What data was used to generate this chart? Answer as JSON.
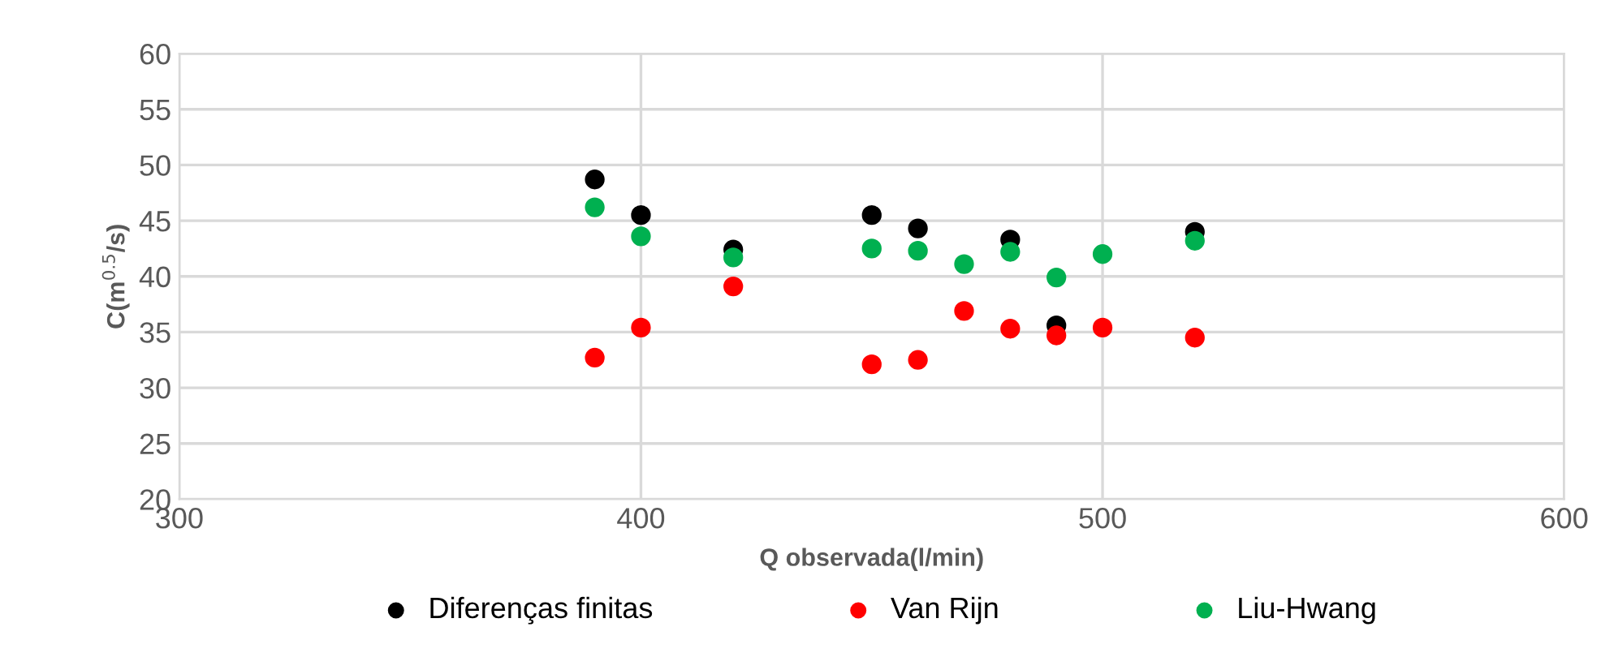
{
  "chart_data": {
    "type": "scatter",
    "xlabel": "Q observada(l/min)",
    "ylabel": "C(m$^{0.5}$/s)",
    "xlim": [
      300,
      600
    ],
    "xticks": [
      300,
      400,
      500,
      600
    ],
    "ylim": [
      20,
      60
    ],
    "yticks": [
      20,
      25,
      30,
      35,
      40,
      45,
      50,
      55,
      60
    ],
    "grid": true,
    "legend": "bottom",
    "marker": "circle",
    "series": [
      {
        "name": "Diferenças finitas",
        "color": "#000000",
        "x": [
          390,
          400,
          420,
          450,
          460,
          480,
          490,
          520
        ],
        "values": [
          48.7,
          45.5,
          42.4,
          45.5,
          44.3,
          43.3,
          35.6,
          44.0
        ]
      },
      {
        "name": "Van Rijn",
        "color": "#ff0000",
        "x": [
          390,
          400,
          420,
          450,
          460,
          470,
          480,
          490,
          500,
          520
        ],
        "values": [
          32.7,
          35.4,
          39.1,
          32.1,
          32.5,
          36.9,
          35.3,
          34.7,
          35.4,
          34.5
        ]
      },
      {
        "name": "Liu-Hwang",
        "color": "#00b050",
        "x": [
          390,
          400,
          420,
          450,
          460,
          470,
          480,
          490,
          500,
          520
        ],
        "values": [
          46.2,
          43.6,
          41.7,
          42.5,
          42.3,
          41.1,
          42.2,
          39.9,
          42.0,
          43.2
        ]
      }
    ]
  }
}
